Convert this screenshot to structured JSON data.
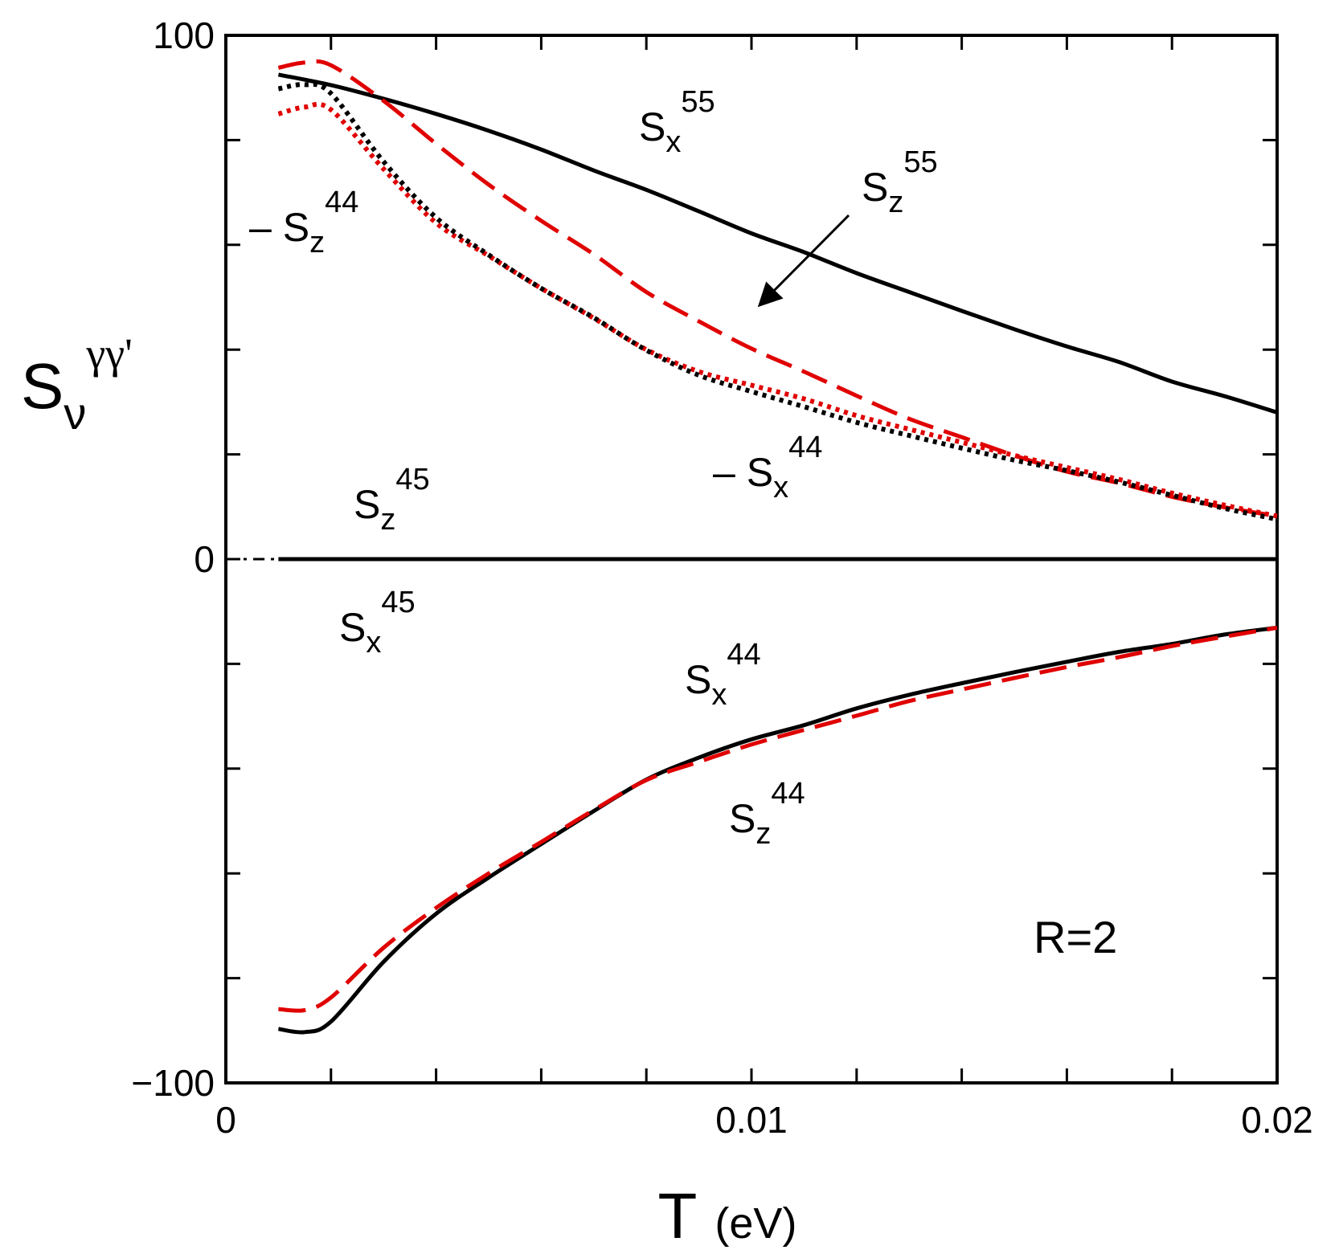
{
  "chart_data": {
    "type": "line",
    "title": "",
    "xlabel": {
      "main": "T",
      "unit": "(eV)"
    },
    "ylabel": {
      "main": "S",
      "sub": "ν",
      "sup": "γγ'"
    },
    "xlim": [
      0,
      0.02
    ],
    "ylim": [
      -100,
      100
    ],
    "xticks": [
      0,
      0.01,
      0.02
    ],
    "xtick_labels": [
      "0",
      "0.01",
      "0.02"
    ],
    "yticks": [
      -100,
      0,
      100
    ],
    "ytick_labels": [
      "−100",
      "0",
      "100"
    ],
    "x_minor_step": 0.002,
    "y_minor_step": 20,
    "legend": "none",
    "grid": false,
    "series": [
      {
        "name": "Sx55",
        "color": "#000000",
        "style": "solid",
        "x": [
          0.001,
          0.002,
          0.003,
          0.004,
          0.005,
          0.006,
          0.007,
          0.008,
          0.009,
          0.01,
          0.011,
          0.012,
          0.013,
          0.014,
          0.015,
          0.016,
          0.017,
          0.018,
          0.019,
          0.02
        ],
        "y": [
          92.5,
          90.5,
          87.9,
          85.0,
          81.8,
          78.2,
          74.2,
          70.5,
          66.4,
          62.2,
          58.6,
          54.6,
          51.0,
          47.4,
          43.9,
          40.6,
          37.6,
          33.9,
          31.1,
          28.0
        ]
      },
      {
        "name": "Sz55",
        "color": "#e00000",
        "style": "dashed",
        "x": [
          0.001,
          0.0015,
          0.002,
          0.003,
          0.004,
          0.005,
          0.006,
          0.007,
          0.008,
          0.009,
          0.01,
          0.011,
          0.012,
          0.013,
          0.014,
          0.015,
          0.016,
          0.017,
          0.018,
          0.019,
          0.02
        ],
        "y": [
          93.8,
          94.8,
          94.3,
          87.5,
          79.3,
          71.5,
          64.6,
          58.2,
          51.0,
          45.4,
          40.2,
          35.8,
          31.2,
          26.8,
          23.3,
          19.8,
          16.7,
          14.5,
          11.9,
          9.9,
          8.2
        ]
      },
      {
        "name": "-Sz44",
        "color": "#e00000",
        "style": "dotted",
        "x": [
          0.001,
          0.0015,
          0.002,
          0.003,
          0.004,
          0.005,
          0.006,
          0.007,
          0.008,
          0.009,
          0.01,
          0.011,
          0.012,
          0.013,
          0.014,
          0.015,
          0.016,
          0.017,
          0.018,
          0.019,
          0.02
        ],
        "y": [
          85.0,
          86.3,
          85.8,
          74.5,
          64.2,
          57.9,
          51.7,
          46.0,
          40.0,
          35.8,
          33.2,
          30.6,
          27.4,
          24.8,
          22.3,
          19.8,
          17.5,
          15.2,
          12.6,
          10.3,
          8.2
        ]
      },
      {
        "name": "-Sx44",
        "color": "#000000",
        "style": "dotted",
        "x": [
          0.001,
          0.0015,
          0.002,
          0.003,
          0.004,
          0.005,
          0.006,
          0.007,
          0.008,
          0.009,
          0.01,
          0.011,
          0.012,
          0.013,
          0.014,
          0.015,
          0.016,
          0.017,
          0.018,
          0.019,
          0.02
        ],
        "y": [
          89.8,
          90.6,
          88.9,
          75.9,
          65.2,
          58.1,
          51.7,
          46.1,
          39.9,
          35.1,
          32.0,
          29.1,
          26.1,
          23.6,
          21.2,
          18.9,
          16.9,
          14.7,
          12.2,
          9.7,
          7.6
        ]
      },
      {
        "name": "Sz45",
        "color": "#000000",
        "style": "solid",
        "x": [
          0.001,
          0.005,
          0.01,
          0.015,
          0.02
        ],
        "y": [
          0,
          0,
          0,
          0,
          0
        ]
      },
      {
        "name": "Sx45",
        "color": "#000000",
        "style": "dashdot",
        "x": [
          0.0,
          0.001
        ],
        "y": [
          0,
          0
        ]
      },
      {
        "name": "Sx44",
        "color": "#000000",
        "style": "solid",
        "x": [
          0.001,
          0.0015,
          0.002,
          0.003,
          0.004,
          0.005,
          0.006,
          0.007,
          0.008,
          0.009,
          0.01,
          0.011,
          0.012,
          0.013,
          0.014,
          0.015,
          0.016,
          0.017,
          0.018,
          0.019,
          0.02
        ],
        "y": [
          -89.7,
          -90.3,
          -88.3,
          -76.9,
          -67.7,
          -60.8,
          -54.4,
          -48.1,
          -42.1,
          -37.9,
          -34.4,
          -31.7,
          -28.5,
          -25.9,
          -23.7,
          -21.6,
          -19.6,
          -17.7,
          -16.2,
          -14.4,
          -13.1
        ]
      },
      {
        "name": "Sz44",
        "color": "#e00000",
        "style": "dashed",
        "x": [
          0.001,
          0.0015,
          0.002,
          0.003,
          0.004,
          0.005,
          0.006,
          0.007,
          0.008,
          0.009,
          0.01,
          0.011,
          0.012,
          0.013,
          0.014,
          0.015,
          0.016,
          0.017,
          0.018,
          0.019,
          0.02
        ],
        "y": [
          -85.9,
          -86.1,
          -83.7,
          -74.2,
          -66.6,
          -60.0,
          -54.0,
          -47.9,
          -42.2,
          -38.7,
          -35.4,
          -32.6,
          -29.9,
          -27.1,
          -24.9,
          -22.7,
          -20.6,
          -18.7,
          -16.6,
          -14.8,
          -13.1
        ]
      }
    ],
    "annotations": [
      {
        "id": "ann-sx55",
        "main": "S",
        "sub": "x",
        "sup": "55"
      },
      {
        "id": "ann-sz55",
        "main": "S",
        "sub": "z",
        "sup": "55"
      },
      {
        "id": "ann-msz44",
        "main": "– S",
        "sub": "z",
        "sup": "44"
      },
      {
        "id": "ann-msx44",
        "main": "– S",
        "sub": "x",
        "sup": "44"
      },
      {
        "id": "ann-sz45",
        "main": "S",
        "sub": "z",
        "sup": "45"
      },
      {
        "id": "ann-sx45",
        "main": "S",
        "sub": "x",
        "sup": "45"
      },
      {
        "id": "ann-sx44",
        "main": "S",
        "sub": "x",
        "sup": "44"
      },
      {
        "id": "ann-sz44",
        "main": "S",
        "sub": "z",
        "sup": "44"
      }
    ],
    "arrow": {
      "from": "Sz55 label",
      "to": "Sz55 curve"
    },
    "parameter_label": "R=2"
  }
}
